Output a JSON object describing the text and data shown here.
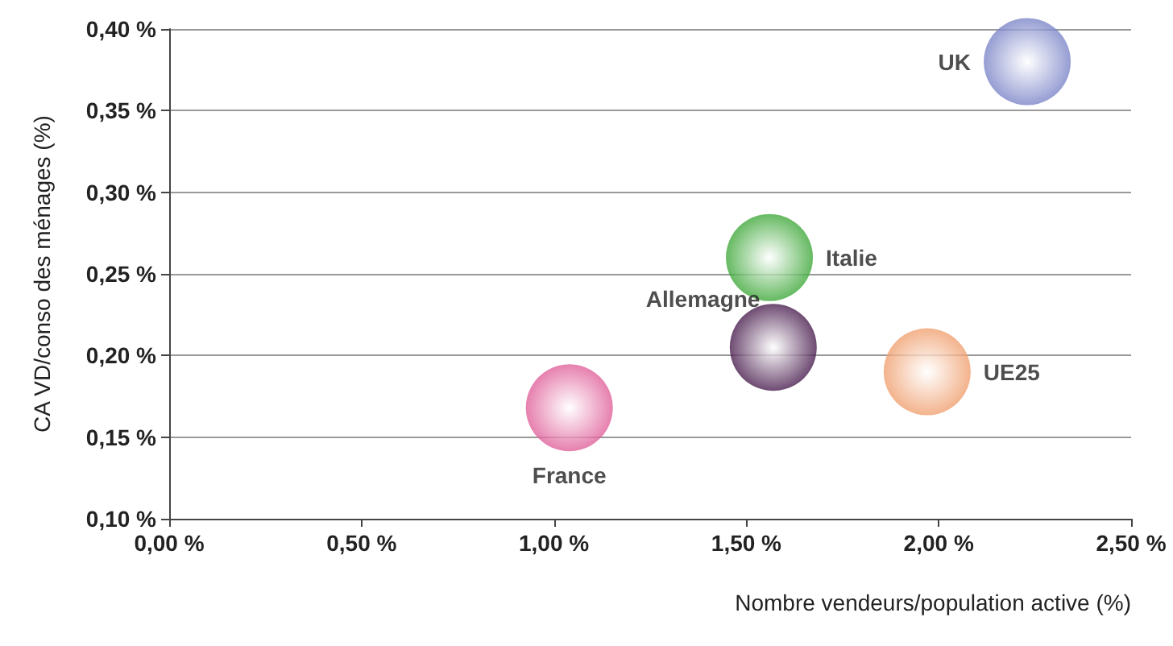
{
  "chart_data": {
    "type": "bubble",
    "xlabel": "Nombre vendeurs/population active (%)",
    "ylabel": "CA VD/conso des ménages (%)",
    "xlim": [
      0,
      2.5
    ],
    "xticks": [
      {
        "value": 0,
        "label": "0,00 %"
      },
      {
        "value": 0.5,
        "label": "0,50 %"
      },
      {
        "value": 1,
        "label": "1,00 %"
      },
      {
        "value": 1.5,
        "label": "1,50 %"
      },
      {
        "value": 2,
        "label": "2,00 %"
      },
      {
        "value": 2.5,
        "label": "2,50 %"
      }
    ],
    "ylim": [
      0.1,
      0.4
    ],
    "yticks": [
      {
        "value": 0.1,
        "label": "0,10 %"
      },
      {
        "value": 0.15,
        "label": "0,15 %"
      },
      {
        "value": 0.2,
        "label": "0,20 %"
      },
      {
        "value": 0.25,
        "label": "0,25 %"
      },
      {
        "value": 0.3,
        "label": "0,30 %"
      },
      {
        "value": 0.35,
        "label": "0,35 %"
      },
      {
        "value": 0.4,
        "label": "0,40 %"
      }
    ],
    "grid": "y",
    "legend": false,
    "marker": "circle",
    "series": [
      {
        "name": "UK",
        "color": "#7b85c8",
        "x": [
          2.23
        ],
        "values": [
          0.38
        ],
        "sizes": [
          1
        ]
      },
      {
        "name": "Italie",
        "color": "#3fa83a",
        "x": [
          1.56
        ],
        "values": [
          0.26
        ],
        "sizes": [
          1
        ]
      },
      {
        "name": "Allemagne",
        "color": "#4a1e4f",
        "x": [
          1.57
        ],
        "values": [
          0.205
        ],
        "sizes": [
          1
        ]
      },
      {
        "name": "UE25",
        "color": "#f0a070",
        "x": [
          1.97
        ],
        "values": [
          0.19
        ],
        "sizes": [
          1
        ]
      },
      {
        "name": "France",
        "color": "#e0609a",
        "x": [
          1.04
        ],
        "values": [
          0.168
        ],
        "sizes": [
          1
        ]
      }
    ]
  }
}
